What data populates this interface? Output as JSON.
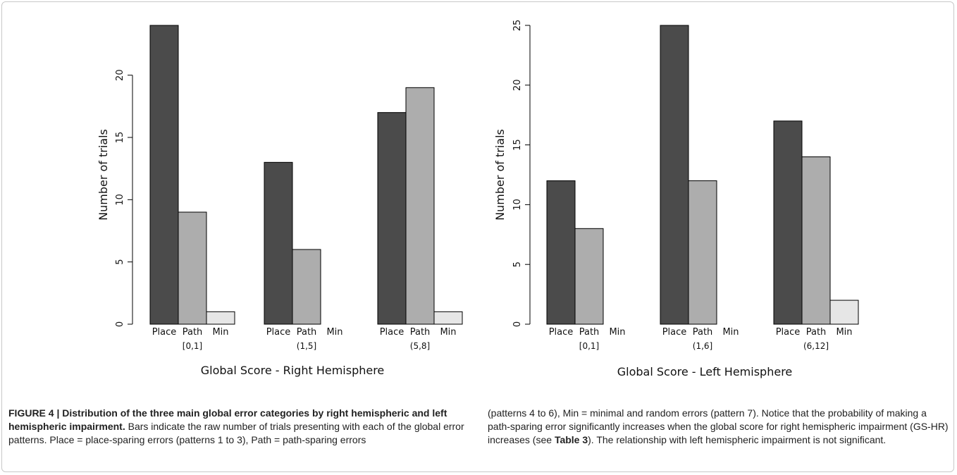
{
  "colors": {
    "place": "#4b4b4b",
    "path": "#adadad",
    "min": "#e6e6e6",
    "bar_stroke": "#000000"
  },
  "chart_data": [
    {
      "type": "bar",
      "title": "",
      "xlabel": "Global Score - Right Hemisphere",
      "ylabel": "Number of trials",
      "ylim": [
        0,
        24
      ],
      "yticks": [
        0,
        5,
        10,
        15,
        20
      ],
      "grid": false,
      "legend": "none",
      "bar_labels": [
        "Place",
        "Path",
        "Min"
      ],
      "categories": [
        "[0,1]",
        "(1,5]",
        "(5,8]"
      ],
      "series": [
        {
          "name": "Place",
          "values": [
            24,
            13,
            17
          ]
        },
        {
          "name": "Path",
          "values": [
            9,
            6,
            19
          ]
        },
        {
          "name": "Min",
          "values": [
            1,
            0,
            1
          ]
        }
      ]
    },
    {
      "type": "bar",
      "title": "",
      "xlabel": "Global Score - Left Hemisphere",
      "ylabel": "Number of trials",
      "ylim": [
        0,
        25
      ],
      "yticks": [
        0,
        5,
        10,
        15,
        20,
        25
      ],
      "grid": false,
      "legend": "none",
      "bar_labels": [
        "Place",
        "Path",
        "Min"
      ],
      "categories": [
        "[0,1]",
        "(1,6]",
        "(6,12]"
      ],
      "series": [
        {
          "name": "Place",
          "values": [
            12,
            25,
            17
          ]
        },
        {
          "name": "Path",
          "values": [
            8,
            12,
            14
          ]
        },
        {
          "name": "Min",
          "values": [
            0,
            0,
            2
          ]
        }
      ]
    }
  ],
  "caption": {
    "label": "FIGURE 4 | Distribution of the three main global error categories by right hemispheric and left hemispheric impairment.",
    "text1": " Bars indicate the raw number of trials presenting with each of the global error patterns. Place = place-sparing errors (patterns 1 to 3), Path = path-sparing errors",
    "text2": "(patterns 4 to 6), Min = minimal and random errors (pattern 7). Notice that the probability of making a path-sparing error significantly increases when the global score for right hemispheric impairment (GS-HR) increases (see ",
    "table_ref": "Table 3",
    "text3": "). The relationship with left hemispheric impairment is not significant."
  }
}
